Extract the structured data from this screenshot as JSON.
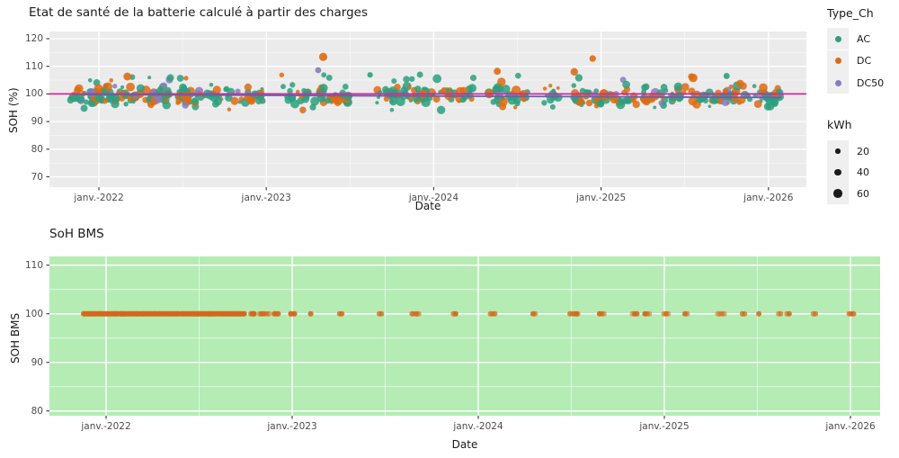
{
  "figure": {
    "background": "#ffffff",
    "tick_text_color": "#4d4d4d",
    "grid_color": "#ffffff"
  },
  "chart_data": [
    {
      "type": "scatter",
      "title": "Etat de santé de la batterie calculé à partir des charges",
      "xlabel": "Date",
      "ylabel": "SOH (%)",
      "panel_bg": "#ebebeb",
      "x_tick_values": [
        2022,
        2023,
        2024,
        2025,
        2026
      ],
      "x_tick_labels": [
        "janv.-2022",
        "janv.-2023",
        "janv.-2024",
        "janv.-2025",
        "janv.-2026"
      ],
      "x_minor_values": [
        2022.5,
        2023.5,
        2024.5,
        2025.5
      ],
      "y_tick_values": [
        120,
        110,
        100,
        90,
        80,
        70
      ],
      "y_minor_values": [
        75,
        85,
        95,
        105,
        115
      ],
      "ylim": [
        66,
        122
      ],
      "x_domain": [
        2021.7,
        2026.23
      ],
      "legend": {
        "title": "Type_Ch",
        "position": "right",
        "items": [
          {
            "label": "AC",
            "color": "#2ba07e"
          },
          {
            "label": "DC",
            "color": "#de6b11"
          },
          {
            "label": "DC50",
            "color": "#867cc0"
          }
        ]
      },
      "size_legend": {
        "title": "kWh",
        "items": [
          {
            "label": "20",
            "value": 20
          },
          {
            "label": "40",
            "value": 40
          },
          {
            "label": "60",
            "value": 60
          }
        ],
        "dot_color": "#1a1a1a"
      },
      "ref_lines": [
        {
          "kind": "hline",
          "y": 100,
          "color": "#d426a4",
          "width": 1.8,
          "full_width": true
        },
        {
          "kind": "trend",
          "x1": 2021.85,
          "y1": 99.8,
          "x2": 2026.08,
          "y2": 98.7,
          "color": "#6a60a8",
          "width": 1.8
        }
      ],
      "point_cloud": {
        "seed": 7,
        "t_start": 2021.87,
        "t_end": 2026.04,
        "per_month_min": 5,
        "per_month_spread": 13,
        "early_bonus_before": 2022.55,
        "early_bonus": 8,
        "gap_prob": 0.12,
        "gap_window": [
          2022.8,
          2025.6
        ],
        "y_mean": 99.3,
        "y_sd": 1.8,
        "y_clip": [
          94.2,
          104.6
        ],
        "high_tail_prob": 0.02,
        "type_weights": {
          "AC": 0.6,
          "DC": 0.34,
          "DC50": 0.06
        },
        "kwh_min": 8,
        "kwh_max": 70,
        "opacity": 0.85
      },
      "outlier_points": [
        {
          "x": 2023.34,
          "y": 113.4,
          "type": "DC",
          "kwh": 55
        },
        {
          "x": 2023.31,
          "y": 108.6,
          "type": "DC50",
          "kwh": 30
        },
        {
          "x": 2022.17,
          "y": 106.3,
          "type": "DC",
          "kwh": 50
        },
        {
          "x": 2023.62,
          "y": 106.9,
          "type": "AC",
          "kwh": 25
        },
        {
          "x": 2024.38,
          "y": 108.2,
          "type": "DC",
          "kwh": 40
        },
        {
          "x": 2024.84,
          "y": 108.0,
          "type": "DC",
          "kwh": 45
        },
        {
          "x": 2024.95,
          "y": 112.8,
          "type": "DC",
          "kwh": 35
        },
        {
          "x": 2025.55,
          "y": 105.8,
          "type": "DC",
          "kwh": 60
        },
        {
          "x": 2025.75,
          "y": 106.5,
          "type": "AC",
          "kwh": 30
        }
      ]
    },
    {
      "type": "scatter",
      "title": "SoH BMS",
      "xlabel": "Date",
      "ylabel": "SOH BMS",
      "panel_bg": "#b4ecb4",
      "x_tick_values": [
        2022,
        2023,
        2024,
        2025,
        2026
      ],
      "x_tick_labels": [
        "janv.-2022",
        "janv.-2023",
        "janv.-2024",
        "janv.-2025",
        "janv.-2026"
      ],
      "x_minor_values": [
        2022.5,
        2023.5,
        2024.5,
        2025.5
      ],
      "y_tick_values": [
        110,
        100,
        90,
        80
      ],
      "y_minor_values": [
        85,
        95,
        105
      ],
      "ylim": [
        79,
        112
      ],
      "x_domain": [
        2021.69,
        2026.16
      ],
      "point_color": "#d2691e",
      "constant_y": 100,
      "point_cloud": {
        "seed": 99,
        "dense_start": 2021.88,
        "dense_end": 2022.73,
        "dense_step": 0.0042,
        "mid_end": 2023.12,
        "mid_count": 30,
        "sparse_end": 2025.98,
        "sparse_gap_min": 0.04,
        "sparse_gap_spread": 0.2,
        "cluster_max": 4,
        "cluster_step": 0.012,
        "radius": 3.0
      }
    }
  ]
}
